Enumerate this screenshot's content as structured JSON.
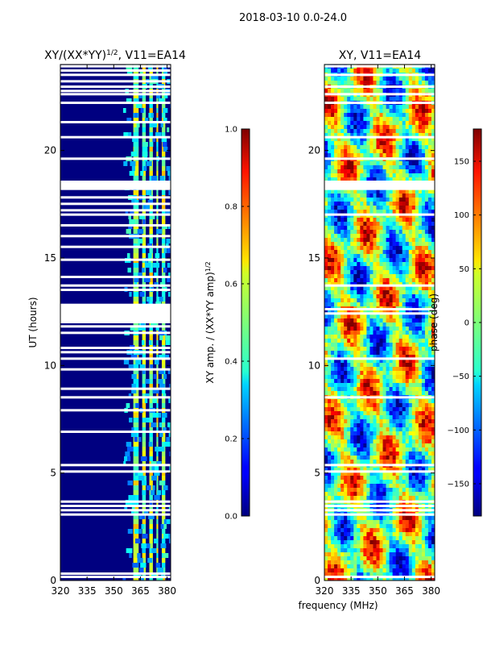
{
  "figure": {
    "suptitle": "2018-03-10 0.0-24.0",
    "shared_xlabel": "frequency (MHz)"
  },
  "chart_data": [
    {
      "type": "heatmap",
      "id": "amp",
      "title_main": "XY/(XX*YY)",
      "title_exp": "1/2",
      "title_tail": ", V11=EA14",
      "ylabel": "UT (hours)",
      "xlim": [
        320,
        382
      ],
      "ylim": [
        0,
        24
      ],
      "xticks": [
        320,
        335,
        350,
        365,
        380
      ],
      "yticks": [
        0,
        5,
        10,
        15,
        20
      ],
      "colorbar": {
        "label_main": "XY amp. / (XX*YY amp)",
        "label_exp": "1/2",
        "range": [
          0.0,
          1.0
        ],
        "ticks": [
          "0.0",
          "0.2",
          "0.4",
          "0.6",
          "0.8",
          "1.0"
        ],
        "tick_values": [
          0.0,
          0.2,
          0.4,
          0.6,
          0.8,
          1.0
        ]
      },
      "gaps_hours": [
        0.15,
        0.3,
        3.05,
        3.25,
        3.45,
        3.65,
        5.05,
        5.35,
        6.9,
        7.9,
        8.5,
        8.9,
        9.8,
        10.3,
        10.6,
        10.8,
        11.5,
        11.8,
        12.0,
        12.2,
        12.4,
        12.6,
        12.8,
        13.5,
        13.7,
        14.1,
        14.9,
        15.5,
        16.0,
        16.5,
        17.0,
        17.2,
        17.5,
        17.8,
        18.2,
        18.35,
        18.5,
        19.6,
        20.6,
        21.3,
        22.2,
        22.6,
        22.75,
        22.95,
        23.2,
        23.5,
        23.7,
        23.9
      ],
      "bright_bands_mhz": [
        [
          361,
          364
        ],
        [
          366,
          368
        ],
        [
          370,
          372
        ],
        [
          374,
          375
        ],
        [
          377,
          379
        ]
      ]
    },
    {
      "type": "heatmap",
      "id": "phase",
      "title": "XY, V11=EA14",
      "xlim": [
        320,
        382
      ],
      "ylim": [
        0,
        24
      ],
      "xticks": [
        320,
        335,
        350,
        365,
        380
      ],
      "yticks": [
        0,
        5,
        10,
        15,
        20
      ],
      "colorbar": {
        "label": "phase (deg)",
        "range": [
          -180,
          180
        ],
        "ticks": [
          "−150",
          "−100",
          "−50",
          "0",
          "50",
          "100",
          "150"
        ],
        "tick_values": [
          -150,
          -100,
          -50,
          0,
          50,
          100,
          150
        ]
      },
      "gaps_hours": [
        0.15,
        3.05,
        3.25,
        3.45,
        3.65,
        5.05,
        5.35,
        8.5,
        10.3,
        12.4,
        12.6,
        13.7,
        17.0,
        18.2,
        18.5,
        19.6,
        20.6,
        22.2,
        22.6,
        22.95,
        23.5,
        23.9
      ]
    }
  ]
}
